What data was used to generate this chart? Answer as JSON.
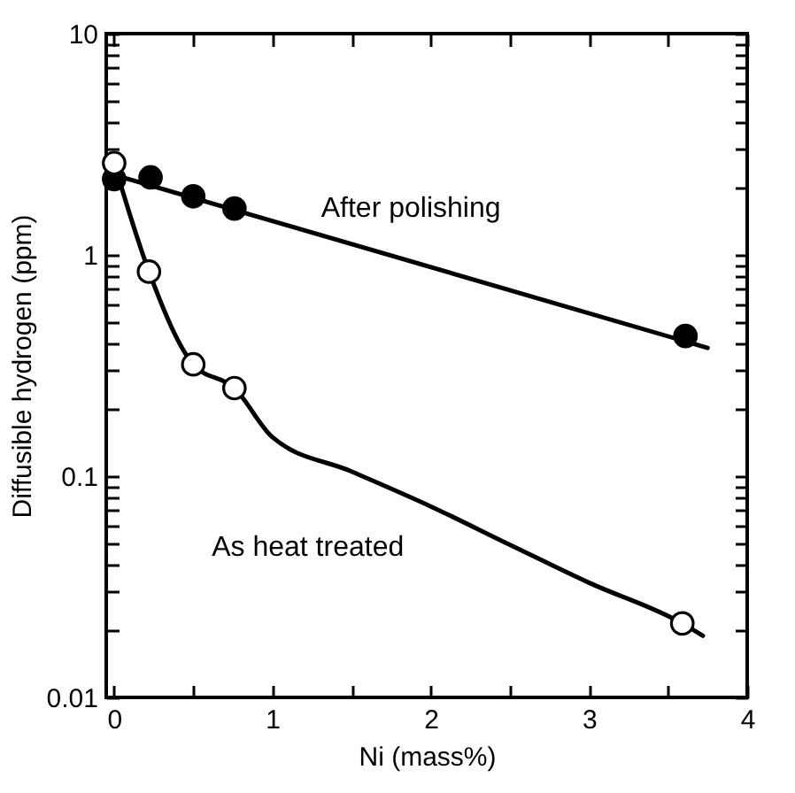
{
  "chart_data": {
    "type": "line",
    "xlabel": "Ni (mass%)",
    "ylabel": "Diffusible hydrogen (ppm)",
    "log": "y",
    "grid": false,
    "xlim": [
      -0.05,
      4
    ],
    "xticks": [
      0,
      {
        "value": 0.5,
        "label": null
      },
      1,
      {
        "value": 1.5,
        "label": null
      },
      2,
      {
        "value": 2.5,
        "label": null
      },
      3,
      {
        "value": 3.5,
        "label": null
      },
      4
    ],
    "ylim": [
      0.01,
      10
    ],
    "yticks": [
      0.01,
      {
        "value": 0.02,
        "label": null
      },
      {
        "value": 0.03,
        "label": null
      },
      {
        "value": 0.04,
        "label": null
      },
      {
        "value": 0.05,
        "label": null
      },
      {
        "value": 0.06,
        "label": null
      },
      {
        "value": 0.07,
        "label": null
      },
      {
        "value": 0.08,
        "label": null
      },
      {
        "value": 0.09,
        "label": null
      },
      0.1,
      {
        "value": 0.2,
        "label": null
      },
      {
        "value": 0.3,
        "label": null
      },
      {
        "value": 0.4,
        "label": null
      },
      {
        "value": 0.5,
        "label": null
      },
      {
        "value": 0.6,
        "label": null
      },
      {
        "value": 0.7,
        "label": null
      },
      {
        "value": 0.8,
        "label": null
      },
      {
        "value": 0.9,
        "label": null
      },
      1,
      {
        "value": 2,
        "label": null
      },
      {
        "value": 3,
        "label": null
      },
      {
        "value": 4,
        "label": null
      },
      {
        "value": 5,
        "label": null
      },
      {
        "value": 6,
        "label": null
      },
      {
        "value": 7,
        "label": null
      },
      {
        "value": 8,
        "label": null
      },
      {
        "value": 9,
        "label": null
      },
      10
    ],
    "series": [
      {
        "name": "After polishing",
        "color": "#000000",
        "x": [
          0,
          3.75
        ],
        "values": [
          2.3,
          0.38
        ]
      },
      {
        "name": "As heat treated",
        "color": "#000000",
        "x": [
          0,
          0.22,
          0.5,
          0.76,
          1,
          1.5,
          2,
          2.5,
          3,
          3.59,
          3.72
        ],
        "values": [
          2.6,
          0.84,
          0.32,
          0.25,
          0.15,
          0.105,
          0.073,
          0.049,
          0.033,
          0.0216,
          0.019
        ]
      },
      {
        "type": "scatter",
        "color": "#000000",
        "x": [
          0,
          0.23,
          0.5,
          0.76,
          3.61
        ],
        "values": [
          2.2,
          2.24,
          1.84,
          1.62,
          0.43
        ]
      },
      {
        "type": "scatter",
        "color": "#ffffff",
        "x": [
          0,
          0.22,
          0.5,
          0.76,
          3.59
        ],
        "values": [
          2.6,
          0.84,
          0.32,
          0.25,
          0.0216
        ]
      }
    ]
  }
}
